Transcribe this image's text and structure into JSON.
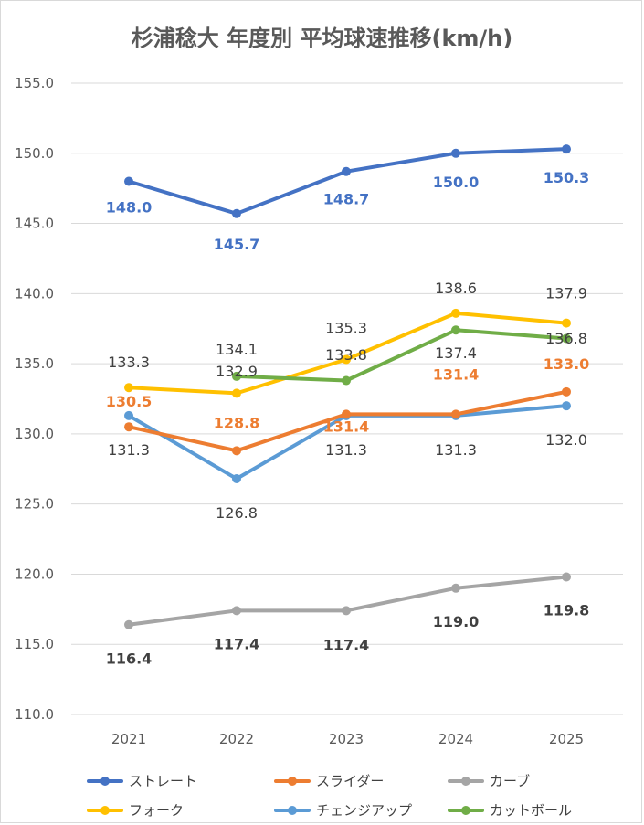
{
  "chart_data": {
    "type": "line",
    "title": "杉浦稔大 年度別 平均球速推移(km/h)",
    "categories": [
      "2021",
      "2022",
      "2023",
      "2024",
      "2025"
    ],
    "ylim": [
      110.0,
      155.0
    ],
    "yticks": [
      "110.0",
      "115.0",
      "120.0",
      "125.0",
      "130.0",
      "135.0",
      "140.0",
      "145.0",
      "150.0",
      "155.0"
    ],
    "grid": true,
    "legend": "bottom",
    "series": [
      {
        "name": "ストレート",
        "color": "#4472C4",
        "values": [
          148.0,
          145.7,
          148.7,
          150.0,
          150.3
        ],
        "labels": [
          "148.0",
          "145.7",
          "148.7",
          "150.0",
          "150.3"
        ]
      },
      {
        "name": "スライダー",
        "color": "#ED7D31",
        "values": [
          130.5,
          128.8,
          131.4,
          131.4,
          133.0
        ],
        "labels": [
          "130.5",
          "128.8",
          "131.4",
          "131.4",
          "133.0"
        ]
      },
      {
        "name": "カーブ",
        "color": "#A5A5A5",
        "values": [
          116.4,
          117.4,
          117.4,
          119.0,
          119.8
        ],
        "labels": [
          "116.4",
          "117.4",
          "117.4",
          "119.0",
          "119.8"
        ]
      },
      {
        "name": "フォーク",
        "color": "#FFC000",
        "values": [
          133.3,
          132.9,
          135.3,
          138.6,
          137.9
        ],
        "labels": [
          "133.3",
          "132.9",
          "135.3",
          "138.6",
          "137.9"
        ]
      },
      {
        "name": "チェンジアップ",
        "color": "#5B9BD5",
        "values": [
          131.3,
          126.8,
          131.3,
          131.3,
          132.0
        ],
        "labels": [
          "131.3",
          "126.8",
          "131.3",
          "131.3",
          "132.0"
        ]
      },
      {
        "name": "カットボール",
        "color": "#70AD47",
        "values": [
          null,
          134.1,
          133.8,
          137.4,
          136.8
        ],
        "labels": [
          "",
          "134.1",
          "133.8",
          "137.4",
          "136.8"
        ]
      }
    ]
  }
}
